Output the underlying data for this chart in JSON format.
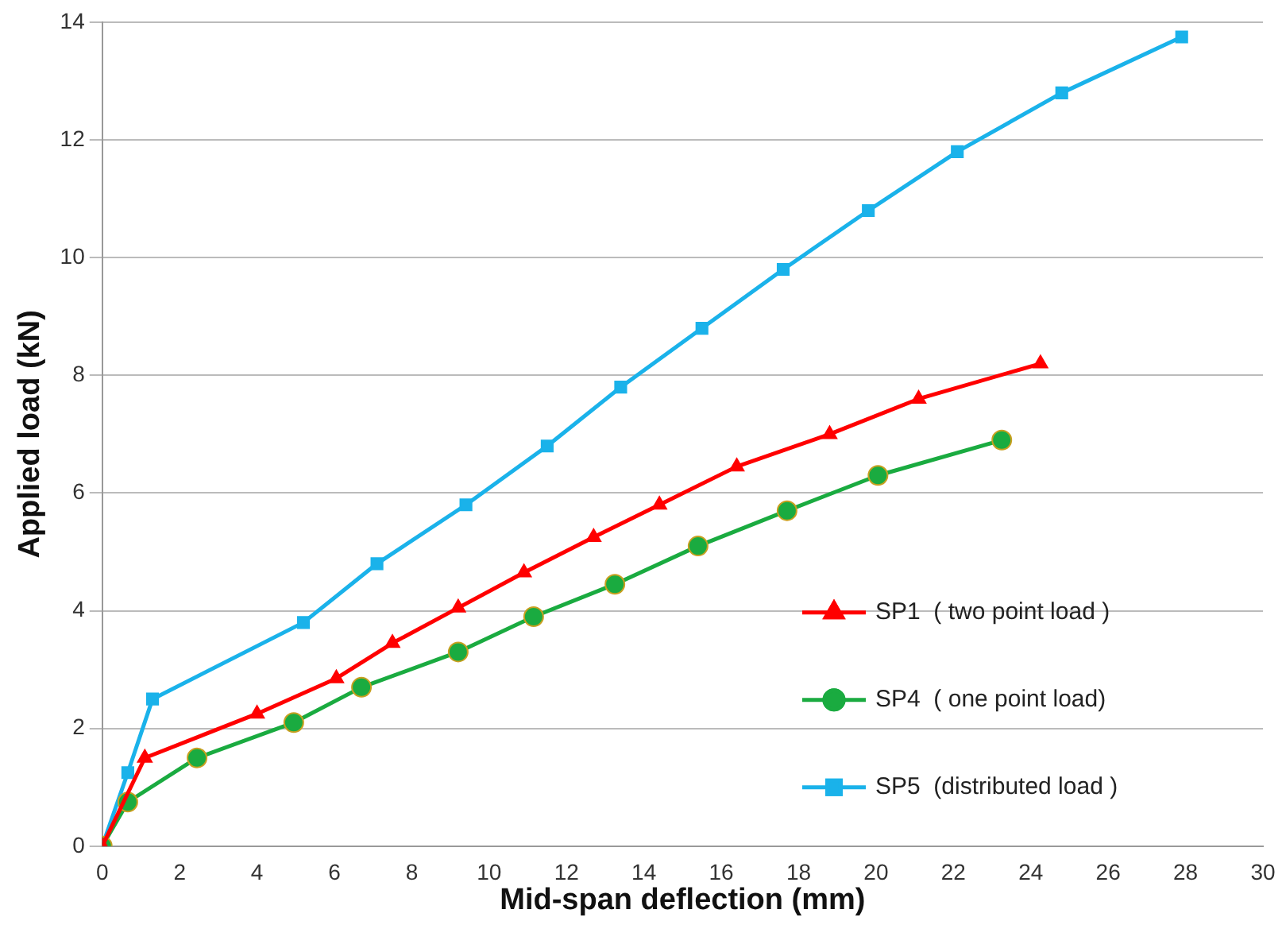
{
  "chart_data": {
    "type": "line",
    "xlabel": "Mid-span deflection (mm)",
    "ylabel": "Applied load (kN)",
    "xlim": [
      0,
      30
    ],
    "xticks": [
      0,
      2,
      4,
      6,
      8,
      10,
      12,
      14,
      16,
      18,
      20,
      22,
      24,
      26,
      28,
      30
    ],
    "ylim": [
      0,
      14
    ],
    "yticks": [
      0,
      2,
      4,
      6,
      8,
      10,
      12,
      14
    ],
    "grid": "y",
    "legend": "bottom right",
    "line_style": "solid",
    "series": [
      {
        "name": "SP1  ( two point load )",
        "color": "#ff0000",
        "marker": "triangle",
        "x": [
          0,
          1.1,
          4.0,
          6.05,
          7.5,
          9.2,
          10.9,
          12.7,
          14.4,
          16.4,
          18.8,
          21.1,
          24.25
        ],
        "values": [
          0,
          1.5,
          2.25,
          2.85,
          3.45,
          4.05,
          4.65,
          5.25,
          5.8,
          6.45,
          7.0,
          7.6,
          8.2
        ]
      },
      {
        "name": "SP4  ( one point load)",
        "color": "#1aab40",
        "marker": "circle",
        "x": [
          0,
          0.66,
          2.45,
          4.95,
          6.7,
          9.2,
          11.15,
          13.25,
          15.4,
          17.7,
          20.05,
          23.25
        ],
        "values": [
          0,
          0.75,
          1.5,
          2.1,
          2.7,
          3.3,
          3.9,
          4.45,
          5.1,
          5.7,
          6.3,
          6.9
        ]
      },
      {
        "name": "SP5  (distributed load )",
        "color": "#1ab2ea",
        "marker": "square",
        "x": [
          0,
          0.66,
          1.3,
          5.2,
          7.1,
          9.4,
          11.5,
          13.4,
          15.5,
          17.6,
          19.8,
          22.1,
          24.8,
          27.9
        ],
        "values": [
          0,
          1.25,
          2.5,
          3.8,
          4.8,
          5.8,
          6.8,
          7.8,
          8.8,
          9.8,
          10.8,
          11.8,
          12.8,
          13.75
        ]
      }
    ]
  }
}
